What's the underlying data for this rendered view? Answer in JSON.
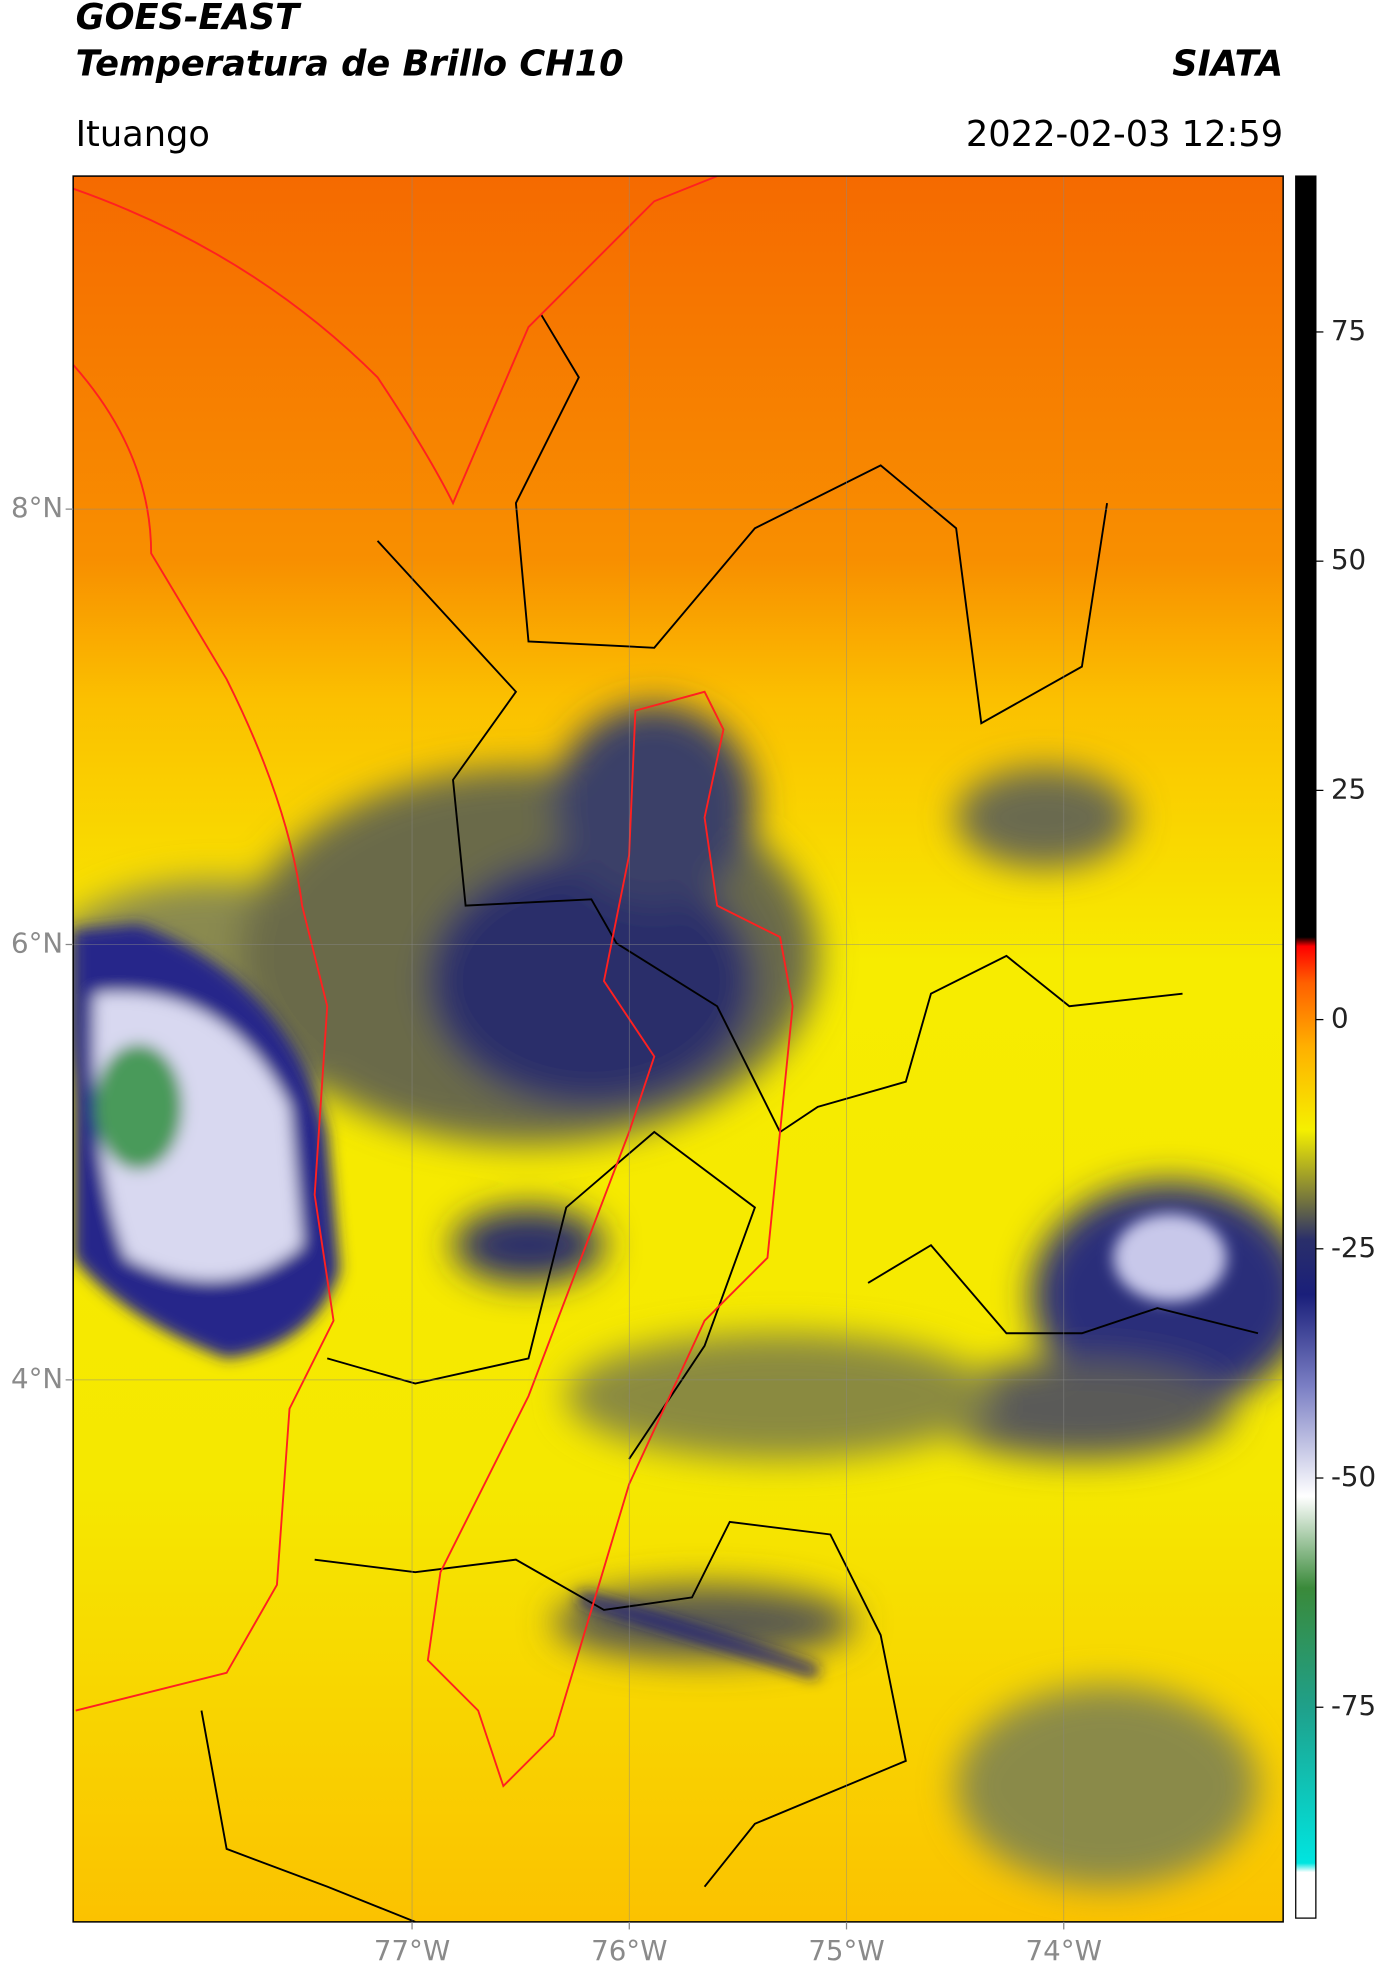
{
  "header": {
    "title": "GOES-EAST",
    "subtitle": "Temperatura de Brillo CH10",
    "org": "SIATA",
    "region": "Ituango",
    "datetime": "2022-02-03 12:59"
  },
  "map": {
    "xlim": [
      -78.56,
      -72.99
    ],
    "ylim": [
      1.51,
      9.53
    ],
    "xticks": [
      {
        "value": -77,
        "label": "77°W"
      },
      {
        "value": -76,
        "label": "76°W"
      },
      {
        "value": -75,
        "label": "75°W"
      },
      {
        "value": -74,
        "label": "74°W"
      }
    ],
    "yticks": [
      {
        "value": 8,
        "label": "8°N"
      },
      {
        "value": 6,
        "label": "6°N"
      },
      {
        "value": 4,
        "label": "4°N"
      }
    ],
    "grid": true
  },
  "colorbar": {
    "lim": [
      -98,
      92
    ],
    "ticks": [
      75,
      50,
      25,
      0,
      -25,
      -50,
      -75
    ],
    "stops": [
      {
        "value": -98,
        "color": "#ffffff"
      },
      {
        "value": -93,
        "color": "#ffffff"
      },
      {
        "value": -92,
        "color": "#00e5e0"
      },
      {
        "value": -75,
        "color": "#1fa08a"
      },
      {
        "value": -62,
        "color": "#3a8a3a"
      },
      {
        "value": -52,
        "color": "#ffffff"
      },
      {
        "value": -40,
        "color": "#7b7fc4"
      },
      {
        "value": -30,
        "color": "#1a1f7a"
      },
      {
        "value": -24,
        "color": "#2a2f6a"
      },
      {
        "value": -20,
        "color": "#6f7040"
      },
      {
        "value": -12,
        "color": "#f5f000"
      },
      {
        "value": -3,
        "color": "#ffb000"
      },
      {
        "value": 4,
        "color": "#ff6000"
      },
      {
        "value": 8,
        "color": "#ff0000"
      },
      {
        "value": 9,
        "color": "#000000"
      },
      {
        "value": 92,
        "color": "#000000"
      }
    ]
  }
}
